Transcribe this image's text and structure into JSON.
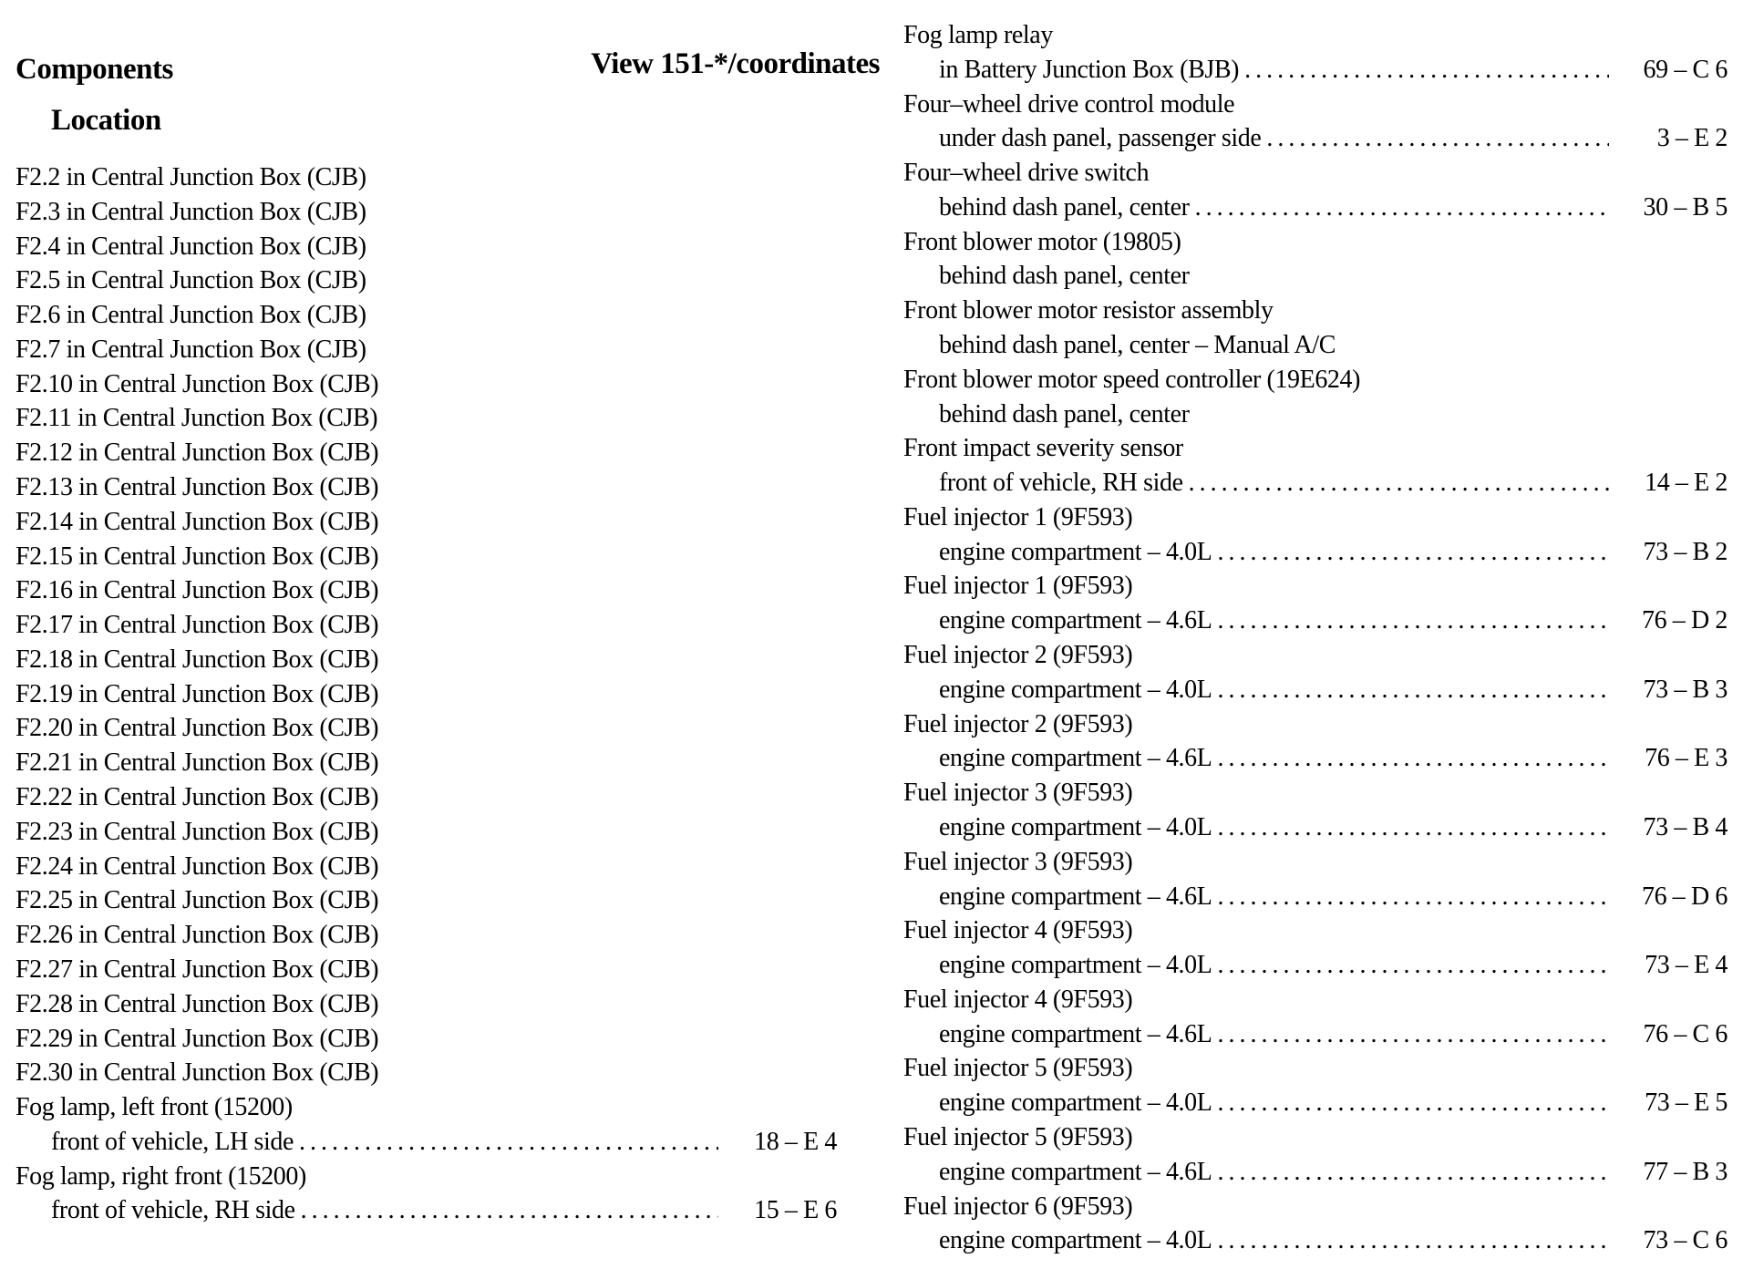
{
  "headings": {
    "components": "Components",
    "view": "View 151-*/coordinates",
    "location": "Location"
  },
  "left_column": [
    {
      "text": "F2.2 in Central Junction Box (CJB)"
    },
    {
      "text": "F2.3 in Central Junction Box (CJB)"
    },
    {
      "text": "F2.4 in Central Junction Box (CJB)"
    },
    {
      "text": "F2.5 in Central Junction Box (CJB)"
    },
    {
      "text": "F2.6 in Central Junction Box (CJB)"
    },
    {
      "text": "F2.7 in Central Junction Box (CJB)"
    },
    {
      "text": "F2.10 in Central Junction Box (CJB)"
    },
    {
      "text": "F2.11 in Central Junction Box (CJB)"
    },
    {
      "text": "F2.12 in Central Junction Box (CJB)"
    },
    {
      "text": "F2.13 in Central Junction Box (CJB)"
    },
    {
      "text": "F2.14 in Central Junction Box (CJB)"
    },
    {
      "text": "F2.15 in Central Junction Box (CJB)"
    },
    {
      "text": "F2.16 in Central Junction Box (CJB)"
    },
    {
      "text": "F2.17 in Central Junction Box (CJB)"
    },
    {
      "text": "F2.18 in Central Junction Box (CJB)"
    },
    {
      "text": "F2.19 in Central Junction Box (CJB)"
    },
    {
      "text": "F2.20 in Central Junction Box (CJB)"
    },
    {
      "text": "F2.21 in Central Junction Box (CJB)"
    },
    {
      "text": "F2.22 in Central Junction Box (CJB)"
    },
    {
      "text": "F2.23 in Central Junction Box (CJB)"
    },
    {
      "text": "F2.24 in Central Junction Box (CJB)"
    },
    {
      "text": "F2.25 in Central Junction Box (CJB)"
    },
    {
      "text": "F2.26 in Central Junction Box (CJB)"
    },
    {
      "text": "F2.27 in Central Junction Box (CJB)"
    },
    {
      "text": "F2.28 in Central Junction Box (CJB)"
    },
    {
      "text": "F2.29 in Central Junction Box (CJB)"
    },
    {
      "text": "F2.30 in Central Junction Box (CJB)"
    },
    {
      "text": "Fog lamp, left front (15200)"
    },
    {
      "text": "front of vehicle, LH side",
      "indent": true,
      "ref": "18 – E 4"
    },
    {
      "text": "Fog lamp, right front (15200)"
    },
    {
      "text": "front of vehicle, RH side",
      "indent": true,
      "ref": "15 – E 6"
    }
  ],
  "right_column": [
    {
      "text": "Fog lamp relay"
    },
    {
      "text": "in Battery Junction Box (BJB)",
      "indent": true,
      "ref": "69 – C 6"
    },
    {
      "text": "Four–wheel drive control module"
    },
    {
      "text": "under dash panel, passenger side",
      "indent": true,
      "ref": "3 – E 2"
    },
    {
      "text": "Four–wheel drive switch"
    },
    {
      "text": "behind dash panel, center",
      "indent": true,
      "ref": "30 – B 5"
    },
    {
      "text": "Front blower motor (19805)"
    },
    {
      "text": "behind dash panel, center",
      "indent": true
    },
    {
      "text": "Front blower motor resistor assembly"
    },
    {
      "text": "behind dash panel, center – Manual A/C",
      "indent": true
    },
    {
      "text": "Front blower motor speed controller (19E624)"
    },
    {
      "text": "behind dash panel, center",
      "indent": true
    },
    {
      "text": "Front impact severity sensor"
    },
    {
      "text": "front of vehicle, RH side",
      "indent": true,
      "ref": "14 – E 2"
    },
    {
      "text": "Fuel injector 1 (9F593)"
    },
    {
      "text": "engine compartment – 4.0L",
      "indent": true,
      "ref": "73 – B 2"
    },
    {
      "text": "Fuel injector 1 (9F593)"
    },
    {
      "text": "engine compartment – 4.6L",
      "indent": true,
      "ref": "76 – D 2"
    },
    {
      "text": "Fuel injector 2 (9F593)"
    },
    {
      "text": "engine compartment – 4.0L",
      "indent": true,
      "ref": "73 – B 3"
    },
    {
      "text": "Fuel injector 2 (9F593)"
    },
    {
      "text": "engine compartment – 4.6L",
      "indent": true,
      "ref": "76 – E 3"
    },
    {
      "text": "Fuel injector 3 (9F593)"
    },
    {
      "text": "engine compartment – 4.0L",
      "indent": true,
      "ref": "73 – B 4"
    },
    {
      "text": "Fuel injector 3 (9F593)"
    },
    {
      "text": "engine compartment – 4.6L",
      "indent": true,
      "ref": "76 – D 6"
    },
    {
      "text": "Fuel injector 4 (9F593)"
    },
    {
      "text": "engine compartment – 4.0L",
      "indent": true,
      "ref": "73 – E 4"
    },
    {
      "text": "Fuel injector 4 (9F593)"
    },
    {
      "text": "engine compartment – 4.6L",
      "indent": true,
      "ref": "76 – C 6"
    },
    {
      "text": "Fuel injector 5 (9F593)"
    },
    {
      "text": "engine compartment – 4.0L",
      "indent": true,
      "ref": "73 – E 5"
    },
    {
      "text": "Fuel injector 5 (9F593)"
    },
    {
      "text": "engine compartment – 4.6L",
      "indent": true,
      "ref": "77 – B 3"
    },
    {
      "text": "Fuel injector 6 (9F593)"
    },
    {
      "text": "engine compartment – 4.0L",
      "indent": true,
      "ref": "73 – C 6"
    }
  ]
}
